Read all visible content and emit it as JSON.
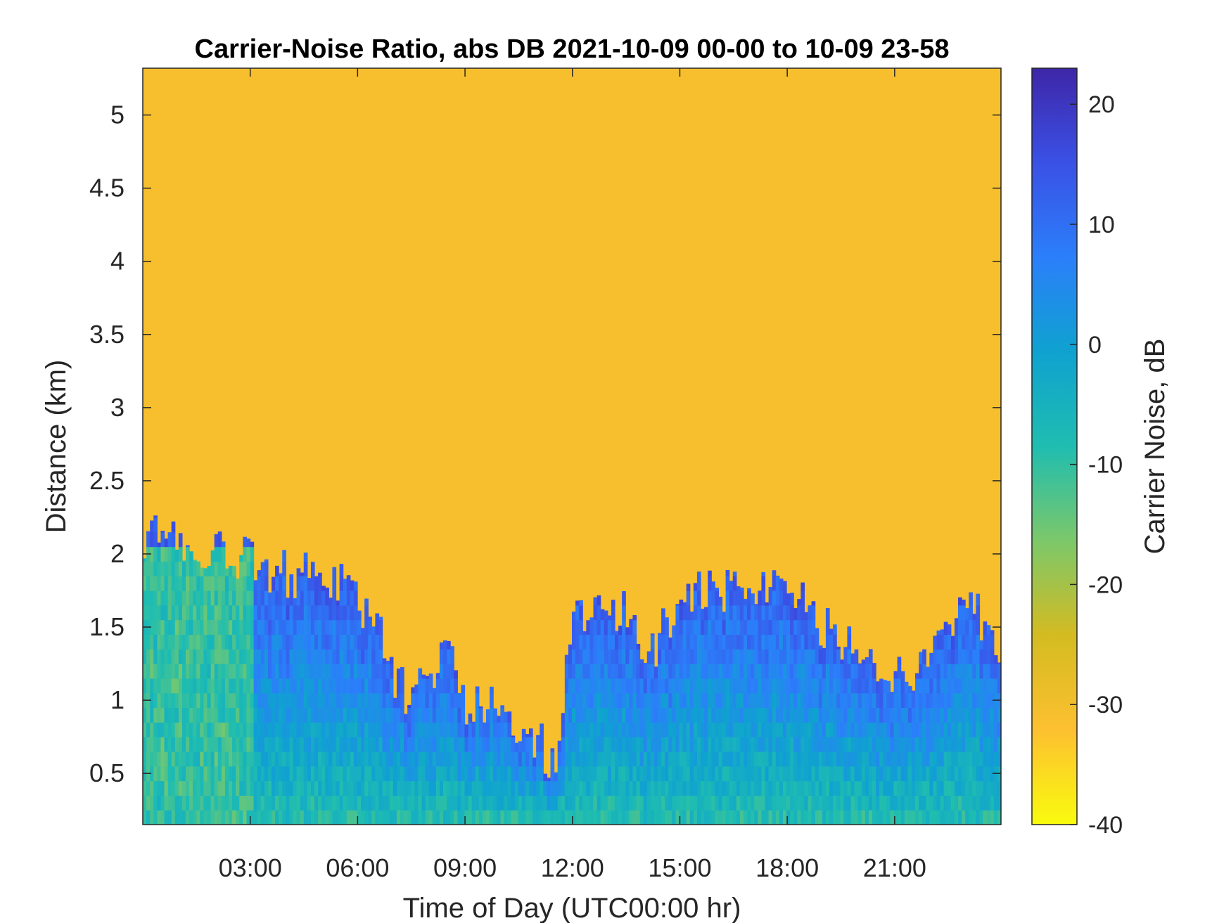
{
  "chart_data": {
    "type": "heatmap",
    "title": "Carrier-Noise Ratio, abs DB 2021-10-09 00-00 to 10-09 23-58",
    "xlabel": "Time of Day (UTC00:00 hr)",
    "ylabel": "Distance (km)",
    "colorbar_label": "Carrier Noise, dB",
    "x_unit": "hour",
    "xlim": [
      0,
      23.97
    ],
    "ylim": [
      0.15,
      5.32
    ],
    "x_ticks": [
      3,
      6,
      9,
      12,
      15,
      18,
      21
    ],
    "x_tick_labels": [
      "03:00",
      "06:00",
      "09:00",
      "12:00",
      "15:00",
      "18:00",
      "21:00"
    ],
    "y_ticks": [
      0.5,
      1,
      1.5,
      2,
      2.5,
      3,
      3.5,
      4,
      4.5,
      5
    ],
    "y_tick_labels": [
      "0.5",
      "1",
      "1.5",
      "2",
      "2.5",
      "3",
      "3.5",
      "4",
      "4.5",
      "5"
    ],
    "clim": [
      -40,
      23
    ],
    "colorbar_ticks": [
      -40,
      -30,
      -20,
      -10,
      0,
      10,
      20
    ],
    "colorbar_tick_labels": [
      "-40",
      "-30",
      "-20",
      "-10",
      "0",
      "10",
      "20"
    ],
    "colormap": [
      "#f9fb0e",
      "#fdc030",
      "#d4bb21",
      "#7cc86a",
      "#1fbdb0",
      "#0fa2d0",
      "#2b7ffa",
      "#3a51e6",
      "#3e26a8"
    ],
    "background_value_db": -31,
    "signal_top_km_by_time": [
      [
        0.0,
        2.15
      ],
      [
        0.5,
        2.1
      ],
      [
        1.0,
        2.05
      ],
      [
        2.0,
        2.0
      ],
      [
        3.0,
        2.0
      ],
      [
        3.5,
        1.9
      ],
      [
        4.5,
        1.85
      ],
      [
        5.5,
        1.8
      ],
      [
        6.5,
        1.5
      ],
      [
        7.0,
        1.2
      ],
      [
        7.5,
        1.0
      ],
      [
        8.0,
        1.2
      ],
      [
        8.5,
        1.3
      ],
      [
        9.0,
        1.0
      ],
      [
        10.0,
        0.9
      ],
      [
        11.0,
        0.7
      ],
      [
        11.5,
        0.6
      ],
      [
        12.0,
        1.5
      ],
      [
        12.5,
        1.7
      ],
      [
        13.5,
        1.6
      ],
      [
        14.0,
        1.2
      ],
      [
        15.0,
        1.7
      ],
      [
        16.0,
        1.75
      ],
      [
        17.0,
        1.8
      ],
      [
        18.0,
        1.85
      ],
      [
        19.0,
        1.5
      ],
      [
        20.0,
        1.3
      ],
      [
        21.0,
        1.1
      ],
      [
        22.0,
        1.3
      ],
      [
        23.0,
        1.8
      ],
      [
        23.97,
        1.2
      ]
    ],
    "signal_value_db_near_ground": -8,
    "signal_value_db_upper_band": 14
  }
}
